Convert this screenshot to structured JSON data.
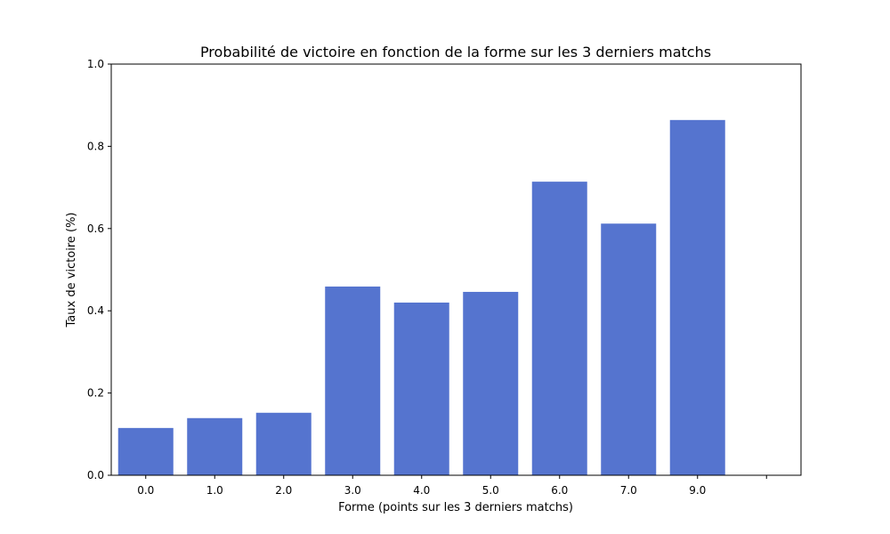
{
  "chart_data": {
    "type": "bar",
    "title": "Probabilité de victoire en fonction de la forme sur les 3 derniers matchs",
    "xlabel": "Forme (points sur les 3 derniers matchs)",
    "ylabel": "Taux de victoire (%)",
    "categories": [
      "0.0",
      "1.0",
      "2.0",
      "3.0",
      "4.0",
      "5.0",
      "6.0",
      "7.0",
      "9.0"
    ],
    "values": [
      0.115,
      0.139,
      0.152,
      0.459,
      0.42,
      0.446,
      0.714,
      0.612,
      0.864
    ],
    "ylim": [
      0,
      1
    ],
    "yticks": [
      "0.0",
      "0.2",
      "0.4",
      "0.6",
      "0.8",
      "1.0"
    ],
    "grid": false,
    "bar_color": "#5574cf"
  }
}
